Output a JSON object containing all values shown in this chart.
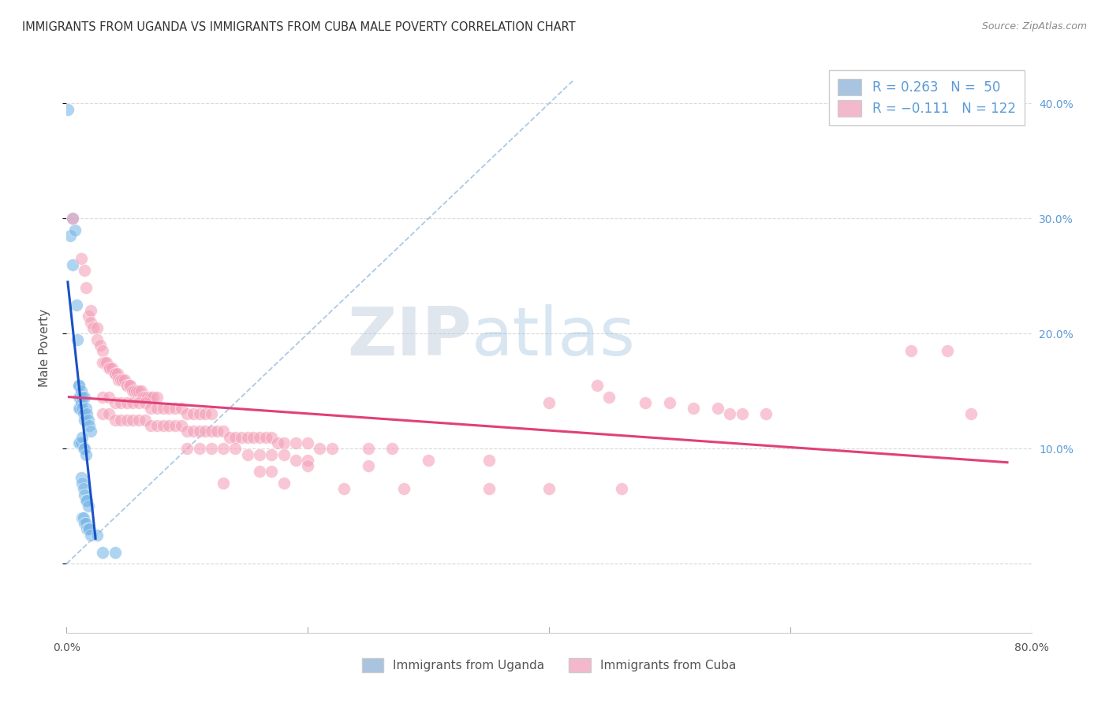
{
  "title": "IMMIGRANTS FROM UGANDA VS IMMIGRANTS FROM CUBA MALE POVERTY CORRELATION CHART",
  "source": "Source: ZipAtlas.com",
  "ylabel": "Male Poverty",
  "xlim": [
    0.0,
    0.8
  ],
  "ylim": [
    -0.06,
    0.435
  ],
  "yticks": [
    0.0,
    0.1,
    0.2,
    0.3,
    0.4
  ],
  "xticks": [
    0.0,
    0.2,
    0.4,
    0.6,
    0.8
  ],
  "uganda_color": "#7ab8e8",
  "cuba_color": "#f4a0b8",
  "uganda_line_color": "#1a52c4",
  "cuba_line_color": "#e0407a",
  "diag_color": "#99bbdd",
  "background_color": "#ffffff",
  "grid_color": "#d0d0d0",
  "title_color": "#333333",
  "axis_right_color": "#5b9bd5",
  "watermark_text": "ZIPatlas",
  "uganda_scatter": [
    [
      0.001,
      0.395
    ],
    [
      0.003,
      0.285
    ],
    [
      0.005,
      0.26
    ],
    [
      0.005,
      0.3
    ],
    [
      0.007,
      0.29
    ],
    [
      0.008,
      0.225
    ],
    [
      0.009,
      0.195
    ],
    [
      0.01,
      0.155
    ],
    [
      0.01,
      0.145
    ],
    [
      0.01,
      0.135
    ],
    [
      0.01,
      0.155
    ],
    [
      0.011,
      0.145
    ],
    [
      0.011,
      0.135
    ],
    [
      0.012,
      0.15
    ],
    [
      0.012,
      0.14
    ],
    [
      0.013,
      0.145
    ],
    [
      0.013,
      0.135
    ],
    [
      0.014,
      0.13
    ],
    [
      0.015,
      0.145
    ],
    [
      0.015,
      0.125
    ],
    [
      0.016,
      0.135
    ],
    [
      0.017,
      0.13
    ],
    [
      0.018,
      0.125
    ],
    [
      0.019,
      0.12
    ],
    [
      0.02,
      0.115
    ],
    [
      0.01,
      0.105
    ],
    [
      0.011,
      0.105
    ],
    [
      0.012,
      0.105
    ],
    [
      0.013,
      0.11
    ],
    [
      0.014,
      0.1
    ],
    [
      0.015,
      0.1
    ],
    [
      0.016,
      0.095
    ],
    [
      0.012,
      0.075
    ],
    [
      0.013,
      0.07
    ],
    [
      0.014,
      0.065
    ],
    [
      0.015,
      0.06
    ],
    [
      0.016,
      0.055
    ],
    [
      0.017,
      0.055
    ],
    [
      0.018,
      0.05
    ],
    [
      0.013,
      0.04
    ],
    [
      0.014,
      0.04
    ],
    [
      0.015,
      0.035
    ],
    [
      0.016,
      0.035
    ],
    [
      0.017,
      0.03
    ],
    [
      0.018,
      0.03
    ],
    [
      0.019,
      0.03
    ],
    [
      0.02,
      0.025
    ],
    [
      0.025,
      0.025
    ],
    [
      0.03,
      0.01
    ],
    [
      0.04,
      0.01
    ]
  ],
  "cuba_scatter": [
    [
      0.005,
      0.3
    ],
    [
      0.012,
      0.265
    ],
    [
      0.015,
      0.255
    ],
    [
      0.016,
      0.24
    ],
    [
      0.018,
      0.215
    ],
    [
      0.02,
      0.22
    ],
    [
      0.02,
      0.21
    ],
    [
      0.022,
      0.205
    ],
    [
      0.025,
      0.205
    ],
    [
      0.025,
      0.195
    ],
    [
      0.028,
      0.19
    ],
    [
      0.03,
      0.185
    ],
    [
      0.03,
      0.175
    ],
    [
      0.032,
      0.175
    ],
    [
      0.033,
      0.175
    ],
    [
      0.035,
      0.17
    ],
    [
      0.036,
      0.17
    ],
    [
      0.038,
      0.17
    ],
    [
      0.04,
      0.165
    ],
    [
      0.04,
      0.165
    ],
    [
      0.042,
      0.165
    ],
    [
      0.043,
      0.16
    ],
    [
      0.045,
      0.16
    ],
    [
      0.046,
      0.16
    ],
    [
      0.048,
      0.16
    ],
    [
      0.05,
      0.155
    ],
    [
      0.05,
      0.155
    ],
    [
      0.052,
      0.155
    ],
    [
      0.053,
      0.155
    ],
    [
      0.055,
      0.15
    ],
    [
      0.056,
      0.15
    ],
    [
      0.058,
      0.15
    ],
    [
      0.06,
      0.15
    ],
    [
      0.062,
      0.15
    ],
    [
      0.063,
      0.145
    ],
    [
      0.065,
      0.145
    ],
    [
      0.067,
      0.145
    ],
    [
      0.07,
      0.145
    ],
    [
      0.072,
      0.145
    ],
    [
      0.075,
      0.145
    ],
    [
      0.03,
      0.145
    ],
    [
      0.035,
      0.145
    ],
    [
      0.04,
      0.14
    ],
    [
      0.045,
      0.14
    ],
    [
      0.05,
      0.14
    ],
    [
      0.055,
      0.14
    ],
    [
      0.06,
      0.14
    ],
    [
      0.065,
      0.14
    ],
    [
      0.07,
      0.135
    ],
    [
      0.075,
      0.135
    ],
    [
      0.08,
      0.135
    ],
    [
      0.085,
      0.135
    ],
    [
      0.09,
      0.135
    ],
    [
      0.095,
      0.135
    ],
    [
      0.1,
      0.13
    ],
    [
      0.105,
      0.13
    ],
    [
      0.11,
      0.13
    ],
    [
      0.115,
      0.13
    ],
    [
      0.12,
      0.13
    ],
    [
      0.03,
      0.13
    ],
    [
      0.035,
      0.13
    ],
    [
      0.04,
      0.125
    ],
    [
      0.045,
      0.125
    ],
    [
      0.05,
      0.125
    ],
    [
      0.055,
      0.125
    ],
    [
      0.06,
      0.125
    ],
    [
      0.065,
      0.125
    ],
    [
      0.07,
      0.12
    ],
    [
      0.075,
      0.12
    ],
    [
      0.08,
      0.12
    ],
    [
      0.085,
      0.12
    ],
    [
      0.09,
      0.12
    ],
    [
      0.095,
      0.12
    ],
    [
      0.1,
      0.115
    ],
    [
      0.105,
      0.115
    ],
    [
      0.11,
      0.115
    ],
    [
      0.115,
      0.115
    ],
    [
      0.12,
      0.115
    ],
    [
      0.125,
      0.115
    ],
    [
      0.13,
      0.115
    ],
    [
      0.135,
      0.11
    ],
    [
      0.14,
      0.11
    ],
    [
      0.145,
      0.11
    ],
    [
      0.15,
      0.11
    ],
    [
      0.155,
      0.11
    ],
    [
      0.16,
      0.11
    ],
    [
      0.165,
      0.11
    ],
    [
      0.17,
      0.11
    ],
    [
      0.175,
      0.105
    ],
    [
      0.18,
      0.105
    ],
    [
      0.19,
      0.105
    ],
    [
      0.2,
      0.105
    ],
    [
      0.21,
      0.1
    ],
    [
      0.22,
      0.1
    ],
    [
      0.25,
      0.1
    ],
    [
      0.27,
      0.1
    ],
    [
      0.1,
      0.1
    ],
    [
      0.11,
      0.1
    ],
    [
      0.12,
      0.1
    ],
    [
      0.13,
      0.1
    ],
    [
      0.14,
      0.1
    ],
    [
      0.15,
      0.095
    ],
    [
      0.16,
      0.095
    ],
    [
      0.17,
      0.095
    ],
    [
      0.18,
      0.095
    ],
    [
      0.19,
      0.09
    ],
    [
      0.2,
      0.09
    ],
    [
      0.3,
      0.09
    ],
    [
      0.35,
      0.09
    ],
    [
      0.2,
      0.085
    ],
    [
      0.25,
      0.085
    ],
    [
      0.16,
      0.08
    ],
    [
      0.17,
      0.08
    ],
    [
      0.4,
      0.14
    ],
    [
      0.44,
      0.155
    ],
    [
      0.45,
      0.145
    ],
    [
      0.48,
      0.14
    ],
    [
      0.5,
      0.14
    ],
    [
      0.52,
      0.135
    ],
    [
      0.54,
      0.135
    ],
    [
      0.55,
      0.13
    ],
    [
      0.56,
      0.13
    ],
    [
      0.58,
      0.13
    ],
    [
      0.13,
      0.07
    ],
    [
      0.18,
      0.07
    ],
    [
      0.23,
      0.065
    ],
    [
      0.28,
      0.065
    ],
    [
      0.35,
      0.065
    ],
    [
      0.4,
      0.065
    ],
    [
      0.46,
      0.065
    ],
    [
      0.7,
      0.185
    ],
    [
      0.73,
      0.185
    ],
    [
      0.75,
      0.13
    ]
  ]
}
